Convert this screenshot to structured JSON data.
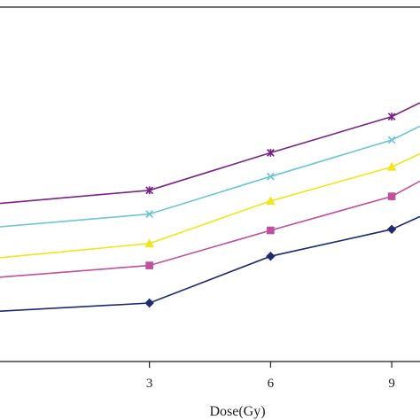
{
  "chart_data": {
    "type": "line",
    "title": "",
    "xlabel": "Dose(Gy)",
    "ylabel": "",
    "xlim": [
      -0.7,
      9.7
    ],
    "ylim": [
      0,
      100
    ],
    "xticks": [
      3,
      6,
      9
    ],
    "xtick_labels": [
      "3",
      "6",
      "9"
    ],
    "grid": false,
    "legend": "none",
    "series": [
      {
        "marker": "diamond",
        "color": "#1f2a6e",
        "points": [
          [
            -0.7,
            14.2
          ],
          [
            3,
            16.5
          ],
          [
            6,
            29.7
          ],
          [
            9,
            37.3
          ],
          [
            9.7,
            40.9
          ]
        ]
      },
      {
        "marker": "square",
        "color": "#c0509f",
        "points": [
          [
            -0.7,
            23.8
          ],
          [
            3,
            27.1
          ],
          [
            6,
            37.0
          ],
          [
            9,
            46.6
          ],
          [
            9.7,
            50.9
          ]
        ]
      },
      {
        "marker": "triangle",
        "color": "#f0e61a",
        "points": [
          [
            -0.7,
            29.3
          ],
          [
            3,
            33.3
          ],
          [
            6,
            45.3
          ],
          [
            9,
            54.9
          ],
          [
            9.7,
            58.6
          ]
        ]
      },
      {
        "marker": "x",
        "color": "#6cc5d6",
        "points": [
          [
            -0.7,
            38.0
          ],
          [
            3,
            41.6
          ],
          [
            6,
            52.2
          ],
          [
            9,
            62.5
          ],
          [
            9.7,
            66.4
          ]
        ]
      },
      {
        "marker": "star",
        "color": "#7b2384",
        "points": [
          [
            -0.7,
            44.6
          ],
          [
            3,
            48.3
          ],
          [
            6,
            58.9
          ],
          [
            9,
            69.1
          ],
          [
            9.7,
            73.0
          ]
        ]
      }
    ]
  }
}
